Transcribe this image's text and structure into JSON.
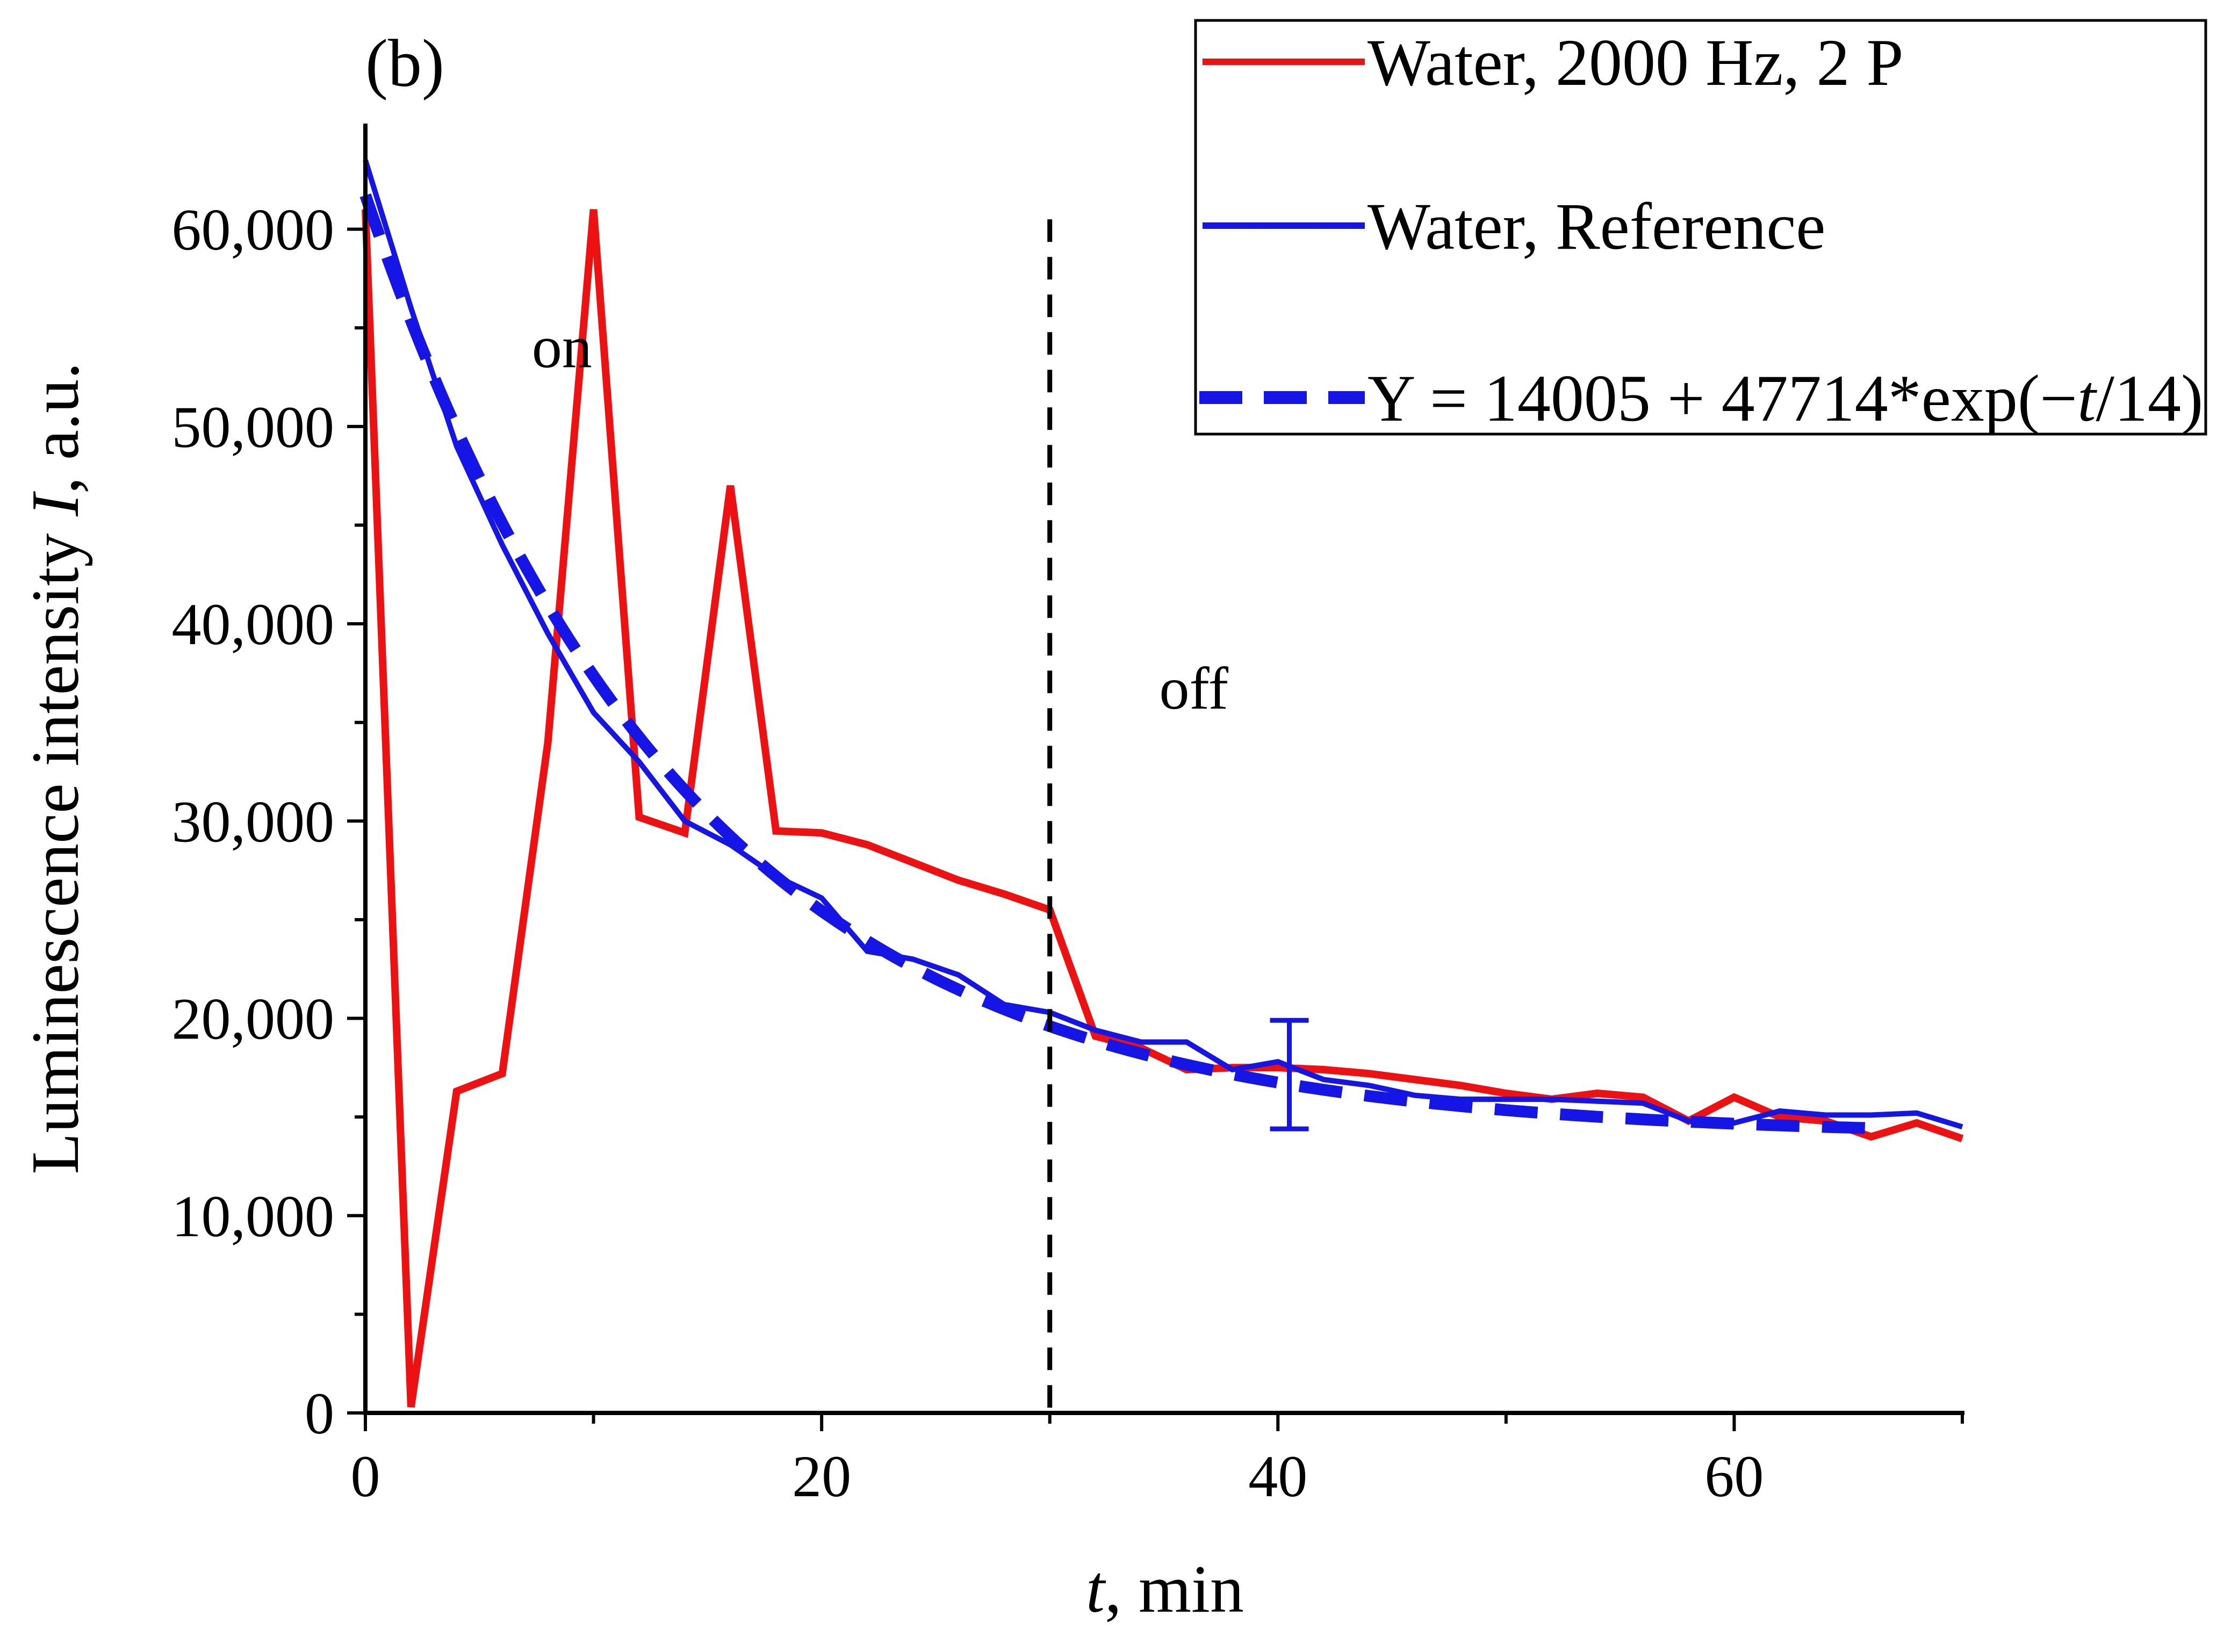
{
  "panel_label": "(b)",
  "chart_data": {
    "type": "line",
    "title": "",
    "xlabel_italic": "t",
    "xlabel_rest": ", min",
    "ylabel_prefix": "Luminescence intensity ",
    "ylabel_italic": "I",
    "ylabel_suffix": ", a.u.",
    "xlim": [
      0,
      70
    ],
    "ylim": [
      0,
      65000
    ],
    "x_ticks": [
      0,
      20,
      40,
      60
    ],
    "x_tick_labels": [
      "0",
      "20",
      "40",
      "60"
    ],
    "x_minor_ticks": [
      10,
      30,
      50,
      70
    ],
    "y_ticks": [
      0,
      10000,
      20000,
      30000,
      40000,
      50000,
      60000
    ],
    "y_tick_labels": [
      "0",
      "10,000",
      "20,000",
      "30,000",
      "40,000",
      "50,000",
      "60,000"
    ],
    "y_minor_ticks": [
      5000,
      15000,
      25000,
      35000,
      45000,
      55000
    ],
    "grid": false,
    "legend_position": "top-right",
    "series": [
      {
        "name": "Water, 2000 Hz, 2 P",
        "color": "#ee1111",
        "style": "solid",
        "x": [
          0,
          2,
          4,
          6,
          8,
          10,
          12,
          14,
          16,
          18,
          20,
          22,
          24,
          26,
          28,
          30,
          32,
          34,
          36,
          38,
          40,
          42,
          44,
          46,
          48,
          50,
          52,
          54,
          56,
          58,
          60,
          62,
          64,
          66,
          68,
          70
        ],
        "y": [
          61000,
          300,
          16300,
          17200,
          34000,
          61000,
          30200,
          29400,
          47000,
          29500,
          29400,
          28800,
          27900,
          27000,
          26300,
          25500,
          19100,
          18500,
          17400,
          17500,
          17500,
          17400,
          17200,
          16900,
          16600,
          16200,
          15900,
          16200,
          16000,
          14800,
          16000,
          15000,
          14800,
          14000,
          14700,
          13900
        ]
      },
      {
        "name": "Water, Reference",
        "color": "#1515e6",
        "style": "solid",
        "x": [
          0,
          2,
          4,
          6,
          8,
          10,
          12,
          14,
          16,
          18,
          20,
          22,
          24,
          26,
          28,
          30,
          32,
          34,
          36,
          38,
          40,
          42,
          44,
          46,
          48,
          50,
          52,
          54,
          56,
          58,
          60,
          62,
          64,
          66,
          68,
          70
        ],
        "y": [
          63500,
          56000,
          49000,
          44000,
          39500,
          35500,
          33000,
          30000,
          28800,
          27200,
          26100,
          23400,
          23000,
          22200,
          20700,
          20300,
          19400,
          18800,
          18800,
          17400,
          17800,
          16900,
          16600,
          16100,
          15900,
          15900,
          15900,
          15800,
          15700,
          14800,
          14700,
          15300,
          15100,
          15100,
          15200,
          14500
        ]
      },
      {
        "name_prefix": "Y = 14005 + 47714*exp(−",
        "name_italic": "t",
        "name_suffix": "/14)",
        "color": "#1515e6",
        "style": "dashed",
        "function": {
          "a": 14005,
          "b": 47714,
          "tau": 14
        },
        "x_range": [
          0,
          66
        ]
      }
    ],
    "error_bar": {
      "x": 40.5,
      "y_low": 14400,
      "y_high": 19900,
      "color": "#1515e6"
    },
    "vertical_line": {
      "x": 30,
      "color": "#000000",
      "style": "dashed"
    },
    "annotations": [
      {
        "text": "on",
        "x": 7.3,
        "y": 53000
      },
      {
        "text": "off",
        "x": 34.8,
        "y": 35700
      }
    ]
  }
}
